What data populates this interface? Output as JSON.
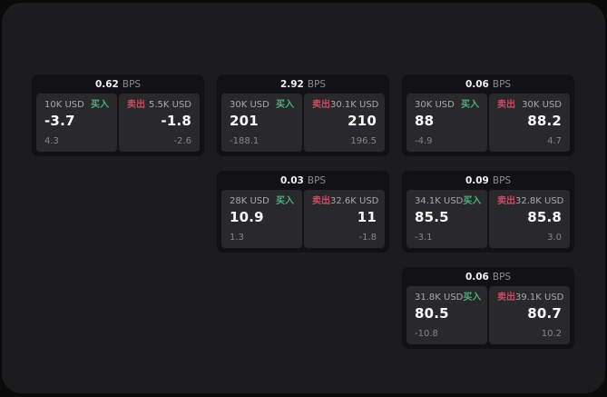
{
  "labels": {
    "bps": "BPS",
    "buy": "买入",
    "sell": "卖出"
  },
  "colors": {
    "outer_bg": "#0a0a0a",
    "canvas_bg": "#1c1c1e",
    "card_bg": "#121214",
    "panel_bg": "#29292c",
    "buy_green": "#4caf79",
    "sell_red": "#cf4a60",
    "value_white": "#fbfbfc",
    "muted_gray": "#a8a8ad",
    "dim_gray": "#85858a"
  },
  "cards": [
    {
      "bps": "0.62",
      "buy": {
        "amount": "10K USD",
        "value": "-3.7",
        "sub": "4.3"
      },
      "sell": {
        "amount": "5.5K USD",
        "value": "-1.8",
        "sub": "-2.6"
      }
    },
    {
      "bps": "2.92",
      "buy": {
        "amount": "30K USD",
        "value": "201",
        "sub": "-188.1"
      },
      "sell": {
        "amount": "30.1K USD",
        "value": "210",
        "sub": "196.5"
      }
    },
    {
      "bps": "0.06",
      "buy": {
        "amount": "30K USD",
        "value": "88",
        "sub": "-4.9"
      },
      "sell": {
        "amount": "30K USD",
        "value": "88.2",
        "sub": "4.7"
      }
    },
    {
      "bps": "0.03",
      "buy": {
        "amount": "28K USD",
        "value": "10.9",
        "sub": "1.3"
      },
      "sell": {
        "amount": "32.6K USD",
        "value": "11",
        "sub": "-1.8"
      }
    },
    {
      "bps": "0.09",
      "buy": {
        "amount": "34.1K USD",
        "value": "85.5",
        "sub": "-3.1"
      },
      "sell": {
        "amount": "32.8K USD",
        "value": "85.8",
        "sub": "3.0"
      }
    },
    {
      "bps": "0.06",
      "buy": {
        "amount": "31.8K USD",
        "value": "80.5",
        "sub": "-10.8"
      },
      "sell": {
        "amount": "39.1K USD",
        "value": "80.7",
        "sub": "10.2"
      }
    }
  ]
}
